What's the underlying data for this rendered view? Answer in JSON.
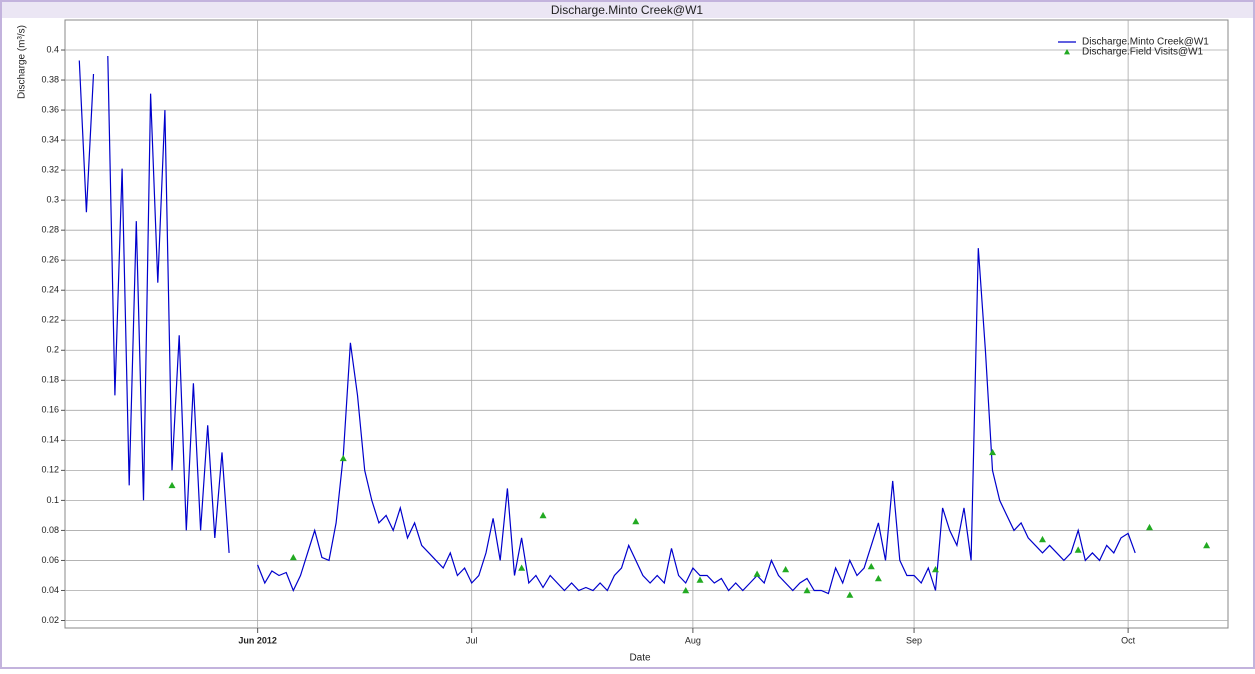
{
  "chart_data": {
    "type": "line",
    "title": "Discharge.Minto Creek@W1",
    "xlabel": "Date",
    "ylabel": "Discharge (m³/s)",
    "xlim": [
      "2012-05-05",
      "2012-10-15"
    ],
    "xticks": [
      {
        "value": "2012-06-01",
        "label": "Jun 2012"
      },
      {
        "value": "2012-07-01",
        "label": "Jul"
      },
      {
        "value": "2012-08-01",
        "label": "Aug"
      },
      {
        "value": "2012-09-01",
        "label": "Sep"
      },
      {
        "value": "2012-10-01",
        "label": "Oct"
      }
    ],
    "ylim": [
      0.015,
      0.42
    ],
    "yticks": [
      0.02,
      0.04,
      0.06,
      0.08,
      0.1,
      0.12,
      0.14,
      0.16,
      0.18,
      0.2,
      0.22,
      0.24,
      0.26,
      0.28,
      0.3,
      0.32,
      0.34,
      0.36,
      0.38,
      0.4
    ],
    "grid": true,
    "legend": "top-right",
    "series": [
      {
        "name": "Discharge.Minto Creek@W1",
        "type": "line",
        "color": "#0000cc",
        "x": [
          "2012-05-07",
          "2012-05-08",
          "2012-05-09",
          "2012-05-10",
          "2012-05-11",
          "2012-05-12",
          "2012-05-13",
          "2012-05-14",
          "2012-05-15",
          "2012-05-16",
          "2012-05-17",
          "2012-05-18",
          "2012-05-19",
          "2012-05-20",
          "2012-05-21",
          "2012-05-22",
          "2012-05-23",
          "2012-05-24",
          "2012-05-25",
          "2012-05-26",
          "2012-05-27",
          "2012-05-28",
          "2012-05-29",
          "2012-06-01",
          "2012-06-02",
          "2012-06-03",
          "2012-06-04",
          "2012-06-05",
          "2012-06-06",
          "2012-06-07",
          "2012-06-08",
          "2012-06-09",
          "2012-06-10",
          "2012-06-11",
          "2012-06-12",
          "2012-06-13",
          "2012-06-14",
          "2012-06-15",
          "2012-06-16",
          "2012-06-17",
          "2012-06-18",
          "2012-06-19",
          "2012-06-20",
          "2012-06-21",
          "2012-06-22",
          "2012-06-23",
          "2012-06-24",
          "2012-06-25",
          "2012-06-26",
          "2012-06-27",
          "2012-06-28",
          "2012-06-29",
          "2012-06-30",
          "2012-07-01",
          "2012-07-02",
          "2012-07-03",
          "2012-07-04",
          "2012-07-05",
          "2012-07-06",
          "2012-07-07",
          "2012-07-08",
          "2012-07-09",
          "2012-07-10",
          "2012-07-11",
          "2012-07-12",
          "2012-07-13",
          "2012-07-14",
          "2012-07-15",
          "2012-07-16",
          "2012-07-17",
          "2012-07-18",
          "2012-07-19",
          "2012-07-20",
          "2012-07-21",
          "2012-07-22",
          "2012-07-23",
          "2012-07-24",
          "2012-07-25",
          "2012-07-26",
          "2012-07-27",
          "2012-07-28",
          "2012-07-29",
          "2012-07-30",
          "2012-07-31",
          "2012-08-01",
          "2012-08-02",
          "2012-08-03",
          "2012-08-04",
          "2012-08-05",
          "2012-08-06",
          "2012-08-07",
          "2012-08-08",
          "2012-08-09",
          "2012-08-10",
          "2012-08-11",
          "2012-08-12",
          "2012-08-13",
          "2012-08-14",
          "2012-08-15",
          "2012-08-16",
          "2012-08-17",
          "2012-08-18",
          "2012-08-19",
          "2012-08-20",
          "2012-08-21",
          "2012-08-22",
          "2012-08-23",
          "2012-08-24",
          "2012-08-25",
          "2012-08-26",
          "2012-08-27",
          "2012-08-28",
          "2012-08-29",
          "2012-08-30",
          "2012-08-31",
          "2012-09-01",
          "2012-09-02",
          "2012-09-03",
          "2012-09-04",
          "2012-09-05",
          "2012-09-06",
          "2012-09-07",
          "2012-09-08",
          "2012-09-09",
          "2012-09-10",
          "2012-09-11",
          "2012-09-12",
          "2012-09-13",
          "2012-09-14",
          "2012-09-15",
          "2012-09-16",
          "2012-09-17",
          "2012-09-18",
          "2012-09-19",
          "2012-09-20",
          "2012-09-21",
          "2012-09-22",
          "2012-09-23",
          "2012-09-24",
          "2012-09-25",
          "2012-09-26",
          "2012-09-27",
          "2012-09-28",
          "2012-09-29",
          "2012-09-30",
          "2012-10-01",
          "2012-10-02"
        ],
        "values": [
          0.393,
          0.292,
          0.384,
          null,
          0.396,
          0.17,
          0.321,
          0.11,
          0.286,
          0.1,
          0.371,
          0.245,
          0.36,
          0.12,
          0.21,
          0.08,
          0.178,
          0.08,
          0.15,
          0.075,
          0.132,
          0.065,
          null,
          0.057,
          0.045,
          0.053,
          0.05,
          0.052,
          0.04,
          0.05,
          0.065,
          0.08,
          0.062,
          0.06,
          0.085,
          0.13,
          0.205,
          0.17,
          0.12,
          0.1,
          0.085,
          0.09,
          0.08,
          0.095,
          0.075,
          0.085,
          0.07,
          0.065,
          0.06,
          0.055,
          0.065,
          0.05,
          0.055,
          0.045,
          0.05,
          0.065,
          0.088,
          0.06,
          0.108,
          0.05,
          0.075,
          0.045,
          0.05,
          0.042,
          0.05,
          0.045,
          0.04,
          0.045,
          0.04,
          0.042,
          0.04,
          0.045,
          0.04,
          0.05,
          0.055,
          0.07,
          0.06,
          0.05,
          0.045,
          0.05,
          0.045,
          0.068,
          0.05,
          0.045,
          0.055,
          0.05,
          0.05,
          0.045,
          0.048,
          0.04,
          0.045,
          0.04,
          0.045,
          0.05,
          0.045,
          0.06,
          0.05,
          0.045,
          0.04,
          0.045,
          0.048,
          0.04,
          0.04,
          0.038,
          0.055,
          0.045,
          0.06,
          0.05,
          0.055,
          0.07,
          0.085,
          0.06,
          0.113,
          0.06,
          0.05,
          0.05,
          0.045,
          0.055,
          0.04,
          0.095,
          0.08,
          0.07,
          0.095,
          0.06,
          0.268,
          0.2,
          0.12,
          0.1,
          0.09,
          0.08,
          0.085,
          0.075,
          0.07,
          0.065,
          0.07,
          0.065,
          0.06,
          0.065,
          0.08,
          0.06,
          0.065,
          0.06,
          0.07,
          0.065,
          0.075,
          0.078,
          0.065
        ]
      },
      {
        "name": "Discharge.Field Visits@W1",
        "type": "scatter",
        "color": "#22aa22",
        "x": [
          "2012-05-20",
          "2012-06-06",
          "2012-06-13",
          "2012-07-08",
          "2012-07-11",
          "2012-07-24",
          "2012-07-31",
          "2012-08-02",
          "2012-08-10",
          "2012-08-14",
          "2012-08-17",
          "2012-08-23",
          "2012-08-26",
          "2012-08-27",
          "2012-09-04",
          "2012-09-12",
          "2012-09-19",
          "2012-09-24",
          "2012-10-04",
          "2012-10-12"
        ],
        "values": [
          0.11,
          0.062,
          0.128,
          0.055,
          0.09,
          0.086,
          0.04,
          0.047,
          0.051,
          0.054,
          0.04,
          0.037,
          0.056,
          0.048,
          0.054,
          0.132,
          0.074,
          0.067,
          0.082,
          0.07
        ]
      }
    ]
  }
}
